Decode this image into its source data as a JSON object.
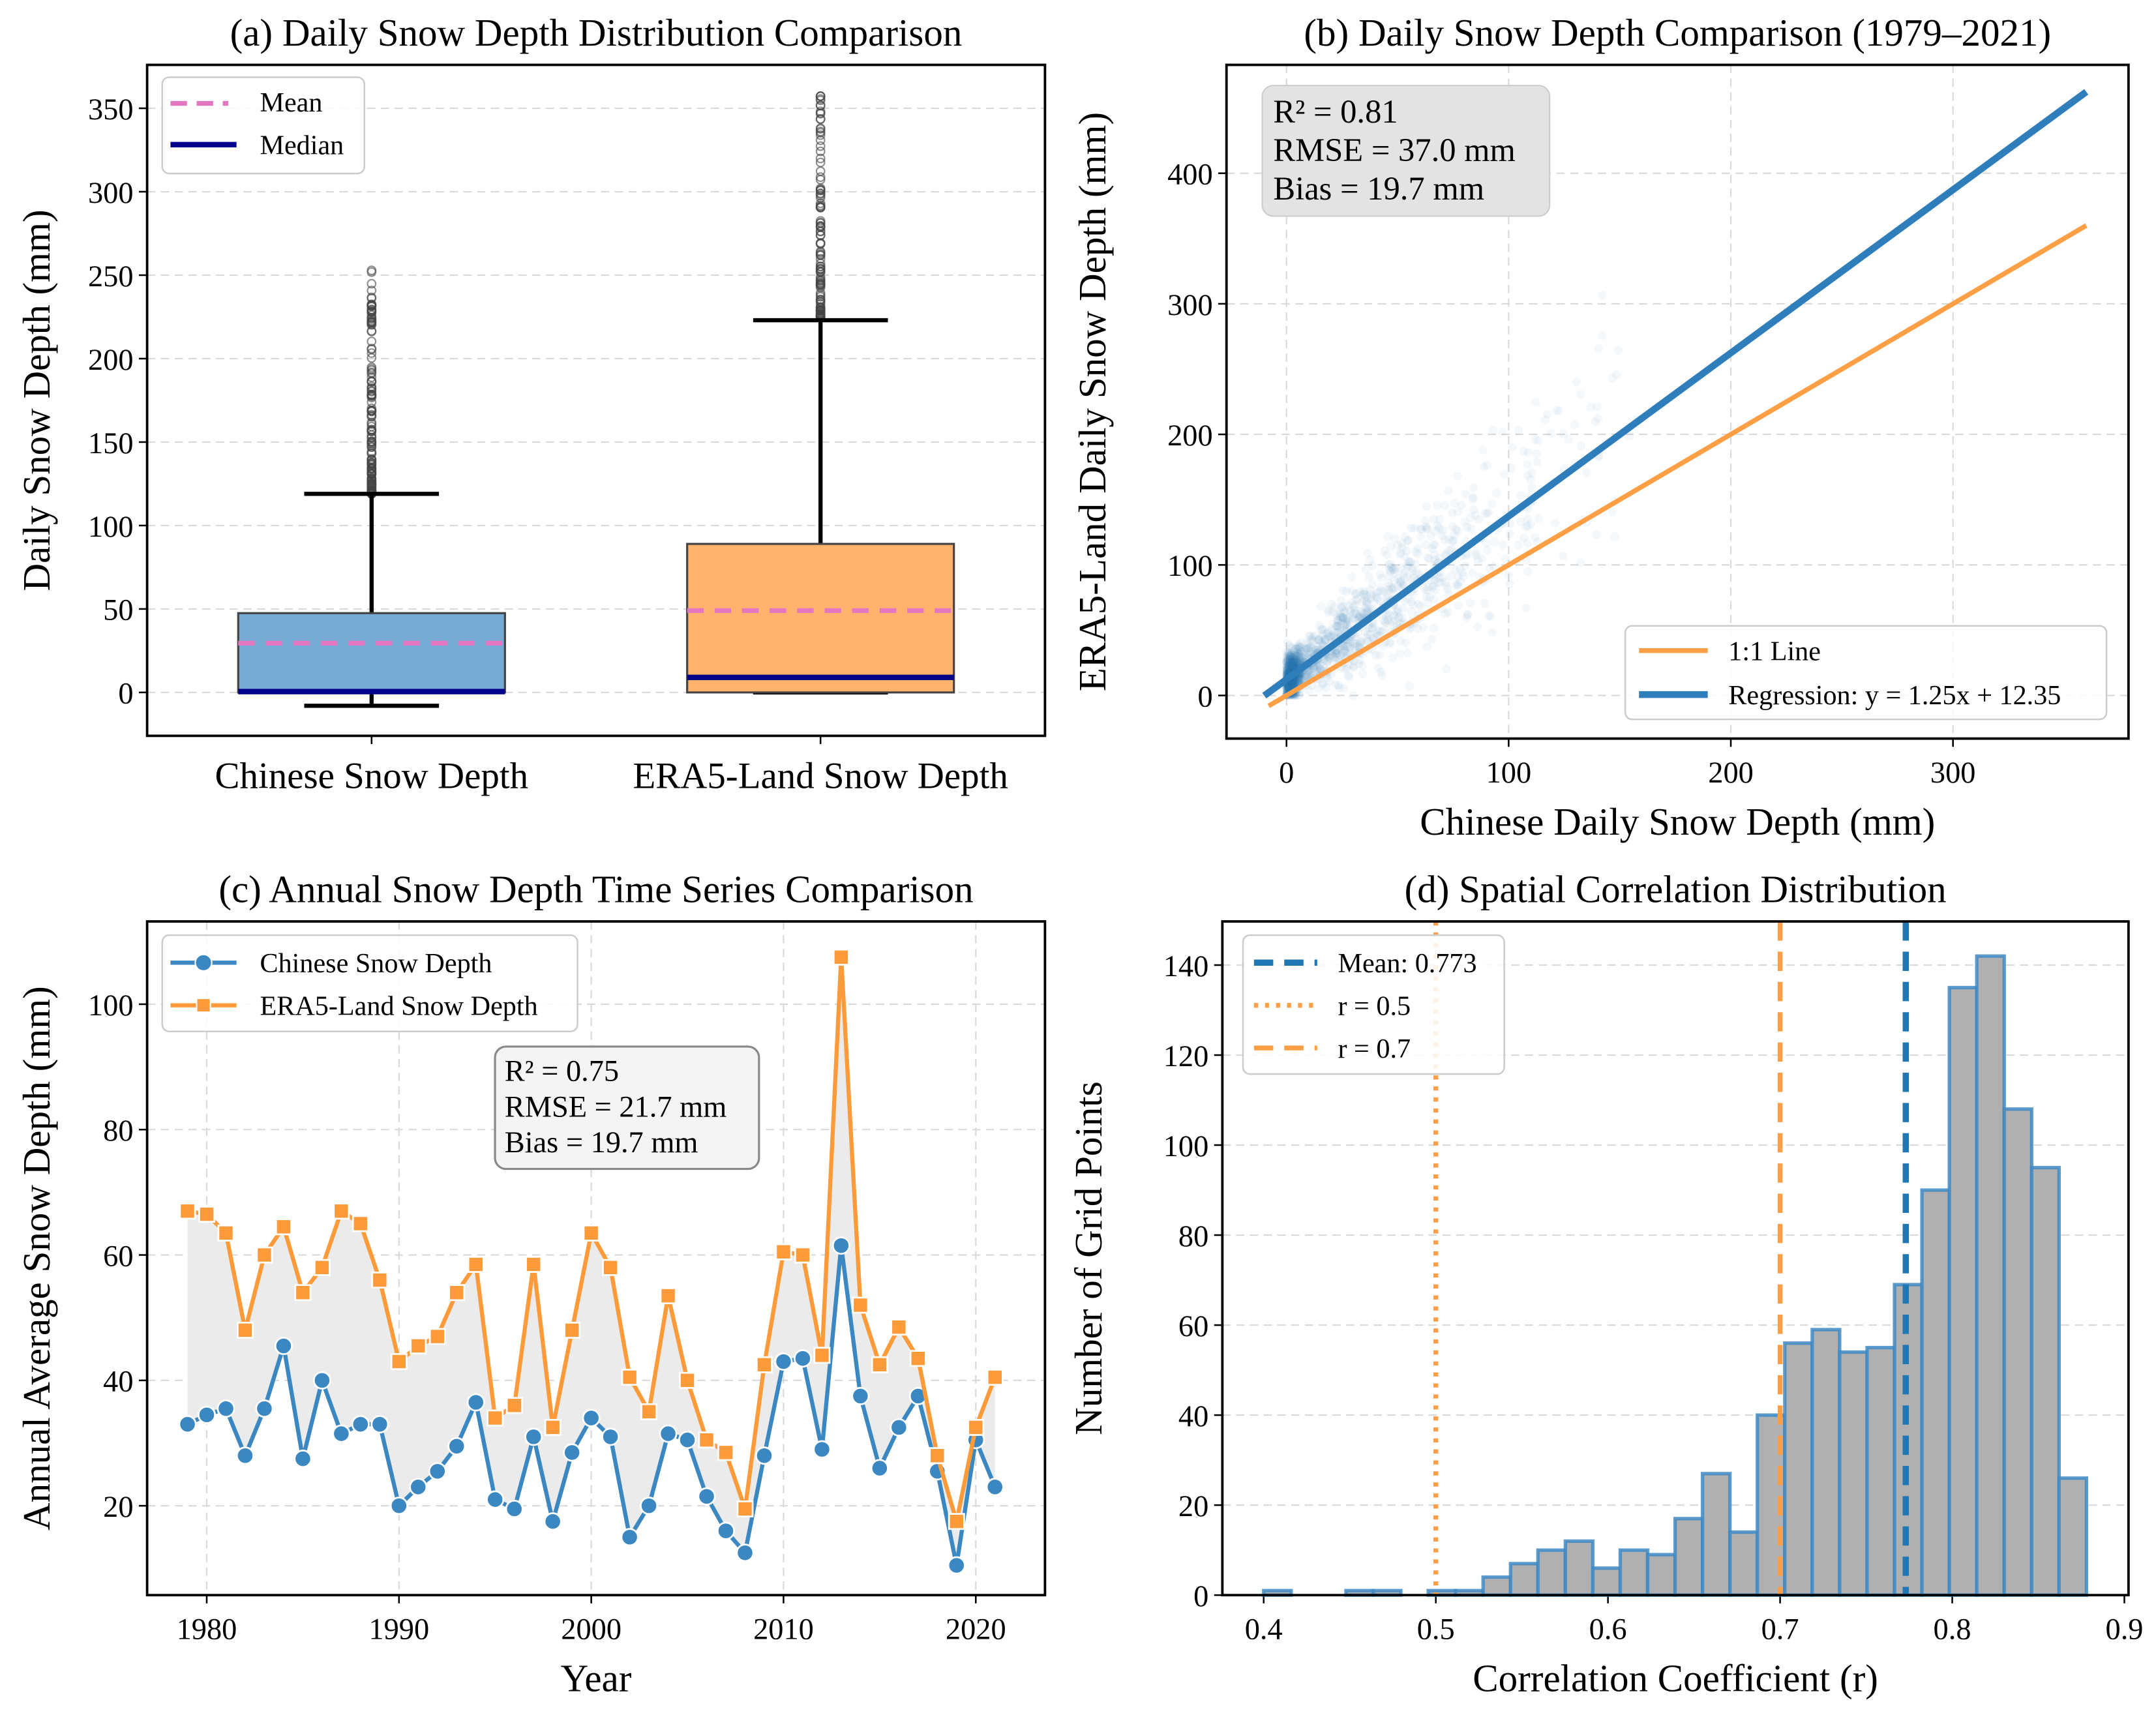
{
  "chart_data": [
    {
      "type": "box",
      "title": "(a) Daily Snow Depth Distribution Comparison",
      "xlabel": "",
      "ylabel": "Daily Snow Depth (mm)",
      "ylim": [
        -26,
        376
      ],
      "yticks": [
        0,
        50,
        100,
        150,
        200,
        250,
        300,
        350
      ],
      "grid": "y",
      "categories": [
        "Chinese Snow Depth",
        "ERA5-Land Snow Depth"
      ],
      "boxes": [
        {
          "q1": 0,
          "median": 0.5,
          "q3": 47.5,
          "mean": 29.5,
          "whisker_low": -8,
          "whisker_high": 119,
          "outlier_min": 119,
          "outlier_max": 254,
          "color": "#76acd3"
        },
        {
          "q1": 0,
          "median": 9,
          "q3": 89,
          "mean": 49,
          "whisker_low": 0,
          "whisker_high": 223,
          "outlier_min": 225,
          "outlier_max": 359,
          "color": "#ffb26e"
        }
      ],
      "mean_color": "#e377c2",
      "median_color": "#00008b",
      "legend": {
        "position": "upper-left",
        "entries": [
          "Mean",
          "Median"
        ]
      }
    },
    {
      "type": "scatter",
      "title": "(b) Daily Snow Depth Comparison (1979–2021)",
      "xlabel": "Chinese Daily Snow Depth (mm)",
      "ylabel": "ERA5-Land Daily Snow Depth (mm)",
      "xlim": [
        -27,
        379
      ],
      "ylim": [
        -33,
        483
      ],
      "xticks": [
        0,
        100,
        200,
        300
      ],
      "yticks": [
        0,
        100,
        200,
        300,
        400
      ],
      "grid": "both",
      "series": [
        {
          "name": "1:1 Line",
          "slope": 1,
          "intercept": 0,
          "x_range": [
            -8,
            360
          ],
          "color": "#ff9f45"
        },
        {
          "name": "Regression: y = 1.25x + 12.35",
          "slope": 1.25,
          "intercept": 12.35,
          "x_range": [
            -10,
            360
          ],
          "color": "#2e7ebc"
        }
      ],
      "point_color": "#1f77b4",
      "stats": [
        "R² = 0.81",
        "RMSE = 37.0 mm",
        "Bias = 19.7 mm"
      ],
      "legend": {
        "position": "lower-right"
      }
    },
    {
      "type": "line",
      "title": "(c) Annual Snow Depth Time Series Comparison",
      "xlabel": "Year",
      "ylabel": "Annual Average Snow Depth (mm)",
      "xlim": [
        1976.9,
        2023.6
      ],
      "ylim": [
        5.75,
        113.2
      ],
      "xticks": [
        1980,
        1990,
        2000,
        2010,
        2020
      ],
      "yticks": [
        20,
        40,
        60,
        80,
        100
      ],
      "grid": "both",
      "x": [
        1979,
        1980,
        1981,
        1982,
        1983,
        1984,
        1985,
        1986,
        1987,
        1988,
        1989,
        1990,
        1991,
        1992,
        1993,
        1994,
        1995,
        1996,
        1997,
        1998,
        1999,
        2000,
        2001,
        2002,
        2003,
        2004,
        2005,
        2006,
        2007,
        2008,
        2009,
        2010,
        2011,
        2012,
        2013,
        2014,
        2015,
        2016,
        2017,
        2018,
        2019,
        2020,
        2021
      ],
      "series": [
        {
          "name": "Chinese Snow Depth",
          "marker": "circle",
          "color": "#3a87c2",
          "values": [
            33,
            34.5,
            35.5,
            28,
            35.5,
            45.5,
            27.5,
            40,
            31.5,
            33,
            33,
            20,
            23,
            25.5,
            29.5,
            36.5,
            21,
            19.5,
            31,
            17.5,
            28.5,
            34,
            31,
            15,
            20,
            31.5,
            30.5,
            21.5,
            16,
            12.5,
            28,
            43,
            43.5,
            29,
            61.5,
            37.5,
            26,
            32.5,
            37.5,
            25.5,
            10.5,
            30.5,
            23
          ]
        },
        {
          "name": "ERA5-Land Snow Depth",
          "marker": "square",
          "color": "#fd9a3a",
          "values": [
            67,
            66.5,
            63.5,
            48,
            60,
            64.5,
            54,
            58,
            67,
            65,
            56,
            43,
            45.5,
            47,
            54,
            58.5,
            34,
            36,
            58.5,
            32.5,
            48,
            63.5,
            58,
            40.5,
            35,
            53.5,
            40,
            30.5,
            28.5,
            19.5,
            42.5,
            60.5,
            60,
            44,
            107.5,
            52,
            42.5,
            48.5,
            43.5,
            28,
            17.5,
            32.5,
            40.5
          ]
        }
      ],
      "fill_between_color": "#ebebeb",
      "stats": [
        "R² = 0.75",
        "RMSE = 21.7 mm",
        "Bias = 19.7 mm"
      ],
      "legend": {
        "position": "upper-left"
      }
    },
    {
      "type": "bar",
      "subtype": "histogram",
      "title": "(d) Spatial Correlation Distribution",
      "xlabel": "Correlation Coefficient (r)",
      "ylabel": "Number of Grid Points",
      "xlim": [
        0.376,
        0.9024
      ],
      "ylim": [
        0,
        149.7
      ],
      "xticks": [
        0.4,
        0.5,
        0.6,
        0.7,
        0.8,
        0.9
      ],
      "yticks": [
        0,
        20,
        40,
        60,
        80,
        100,
        120,
        140
      ],
      "grid": "y",
      "bin_start": 0.4,
      "bin_end": 0.878,
      "counts": [
        1,
        0,
        0,
        1,
        1,
        0,
        1,
        1,
        4,
        7,
        10,
        12,
        6,
        10,
        9,
        17,
        27,
        14,
        40,
        56,
        59,
        54,
        55,
        69,
        90,
        135,
        142,
        108,
        95,
        26
      ],
      "bar_color": "#b0b0b0",
      "edge_color": "#3f8ac4",
      "reference_lines": [
        {
          "label": "Mean: 0.773",
          "x": 0.773,
          "style": "dashed",
          "color": "#1f77b4"
        },
        {
          "label": "r = 0.5",
          "x": 0.5,
          "style": "dotted",
          "color": "#ff9f45"
        },
        {
          "label": "r = 0.7",
          "x": 0.7,
          "style": "dashed",
          "color": "#ff9f45"
        }
      ],
      "legend": {
        "position": "upper-left"
      }
    }
  ]
}
